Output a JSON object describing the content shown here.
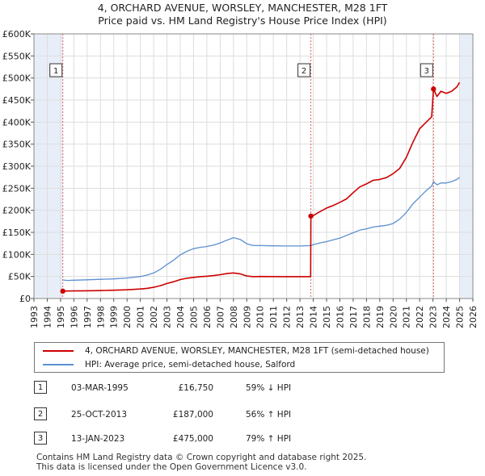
{
  "title": {
    "line1": "4, ORCHARD AVENUE, WORSLEY, MANCHESTER, M28 1FT",
    "line2": "Price paid vs. HM Land Registry's House Price Index (HPI)"
  },
  "colors": {
    "property": "#cc0000",
    "hpi": "#5b8fd0",
    "shade": "#e8eef8",
    "grid": "#dddddd",
    "vline": "#e06060"
  },
  "chart_data": {
    "type": "line",
    "title": "4, ORCHARD AVENUE, WORSLEY, MANCHESTER, M28 1FT — Price paid vs. HM Land Registry's House Price Index (HPI)",
    "xlabel": "",
    "ylabel": "",
    "xlim": [
      1993,
      2026
    ],
    "ylim": [
      0,
      600000
    ],
    "x_ticks": [
      1993,
      1994,
      1995,
      1996,
      1997,
      1998,
      1999,
      2000,
      2001,
      2002,
      2003,
      2004,
      2005,
      2006,
      2007,
      2008,
      2009,
      2010,
      2011,
      2012,
      2013,
      2014,
      2015,
      2016,
      2017,
      2018,
      2019,
      2020,
      2021,
      2022,
      2023,
      2024,
      2025,
      2026
    ],
    "y_ticks": [
      0,
      50000,
      100000,
      150000,
      200000,
      250000,
      300000,
      350000,
      400000,
      450000,
      500000,
      550000,
      600000
    ],
    "y_tick_labels": [
      "£0",
      "£50K",
      "£100K",
      "£150K",
      "£200K",
      "£250K",
      "£300K",
      "£350K",
      "£400K",
      "£450K",
      "£500K",
      "£550K",
      "£600K"
    ],
    "grid": true,
    "shaded_ranges": [
      [
        1993,
        1995.17
      ],
      [
        2025.0,
        2026
      ]
    ],
    "series": [
      {
        "name": "4, ORCHARD AVENUE, WORSLEY, MANCHESTER, M28 1FT (semi-detached house)",
        "x": [
          1995.17,
          1995.5,
          1996,
          1997,
          1998,
          1999,
          2000,
          2001,
          2001.5,
          2002,
          2002.5,
          2003,
          2003.5,
          2004,
          2004.5,
          2005,
          2005.5,
          2006,
          2006.5,
          2007,
          2007.5,
          2008,
          2008.5,
          2009,
          2009.5,
          2010,
          2011,
          2012,
          2013,
          2013.8,
          2013.82,
          2014,
          2014.5,
          2015,
          2015.5,
          2016,
          2016.5,
          2017,
          2017.5,
          2018,
          2018.5,
          2019,
          2019.5,
          2020,
          2020.5,
          2021,
          2021.5,
          2022,
          2022.5,
          2022.9,
          2023.04,
          2023.3,
          2023.6,
          2024,
          2024.4,
          2024.8,
          2025
        ],
        "values": [
          16750,
          17000,
          17200,
          17500,
          18000,
          18800,
          19800,
          21500,
          23000,
          25500,
          29000,
          34000,
          38000,
          43000,
          46000,
          48000,
          49500,
          50500,
          52000,
          54000,
          56500,
          58000,
          56000,
          51000,
          49500,
          50000,
          49800,
          49500,
          49500,
          49500,
          187000,
          188000,
          197000,
          205000,
          211000,
          218000,
          226000,
          240000,
          253000,
          260000,
          268000,
          270000,
          274000,
          283000,
          295000,
          320000,
          355000,
          385000,
          400000,
          412000,
          475000,
          458000,
          470000,
          465000,
          470000,
          480000,
          490000
        ]
      },
      {
        "name": "HPI: Average price, semi-detached house, Salford",
        "x": [
          1995.17,
          1995.5,
          1996,
          1997,
          1998,
          1999,
          2000,
          2001,
          2001.5,
          2002,
          2002.5,
          2003,
          2003.5,
          2004,
          2004.5,
          2005,
          2005.5,
          2006,
          2006.5,
          2007,
          2007.5,
          2008,
          2008.5,
          2009,
          2009.5,
          2010,
          2011,
          2012,
          2013,
          2013.82,
          2014,
          2014.5,
          2015,
          2015.5,
          2016,
          2016.5,
          2017,
          2017.5,
          2018,
          2018.5,
          2019,
          2019.5,
          2020,
          2020.5,
          2021,
          2021.5,
          2022,
          2022.5,
          2022.9,
          2023.04,
          2023.3,
          2023.6,
          2024,
          2024.4,
          2024.8,
          2025
        ],
        "values": [
          42000,
          41000,
          41500,
          42500,
          43500,
          44500,
          46500,
          50000,
          53000,
          58000,
          66000,
          77000,
          87000,
          99000,
          107000,
          113000,
          116000,
          118000,
          121000,
          126000,
          132000,
          138000,
          134000,
          124000,
          120000,
          120000,
          119500,
          119000,
          119000,
          120000,
          122000,
          126000,
          129000,
          133000,
          137000,
          143000,
          149000,
          155000,
          158000,
          162000,
          164000,
          166000,
          170000,
          180000,
          195000,
          215000,
          230000,
          245000,
          255000,
          265000,
          258000,
          262000,
          262000,
          265000,
          270000,
          275000
        ]
      }
    ],
    "annotations": [
      {
        "label": "1",
        "x": 1995.17
      },
      {
        "label": "2",
        "x": 2013.82
      },
      {
        "label": "3",
        "x": 2023.04
      }
    ]
  },
  "legend": {
    "property_label": "4, ORCHARD AVENUE, WORSLEY, MANCHESTER, M28 1FT (semi-detached house)",
    "hpi_label": "HPI: Average price, semi-detached house, Salford"
  },
  "sales": [
    {
      "marker": "1",
      "date": "03-MAR-1995",
      "price": "£16,750",
      "hpi": "59% ↓ HPI"
    },
    {
      "marker": "2",
      "date": "25-OCT-2013",
      "price": "£187,000",
      "hpi": "56% ↑ HPI"
    },
    {
      "marker": "3",
      "date": "13-JAN-2023",
      "price": "£475,000",
      "hpi": "79% ↑ HPI"
    }
  ],
  "footnote": {
    "line1": "Contains HM Land Registry data © Crown copyright and database right 2025.",
    "line2": "This data is licensed under the Open Government Licence v3.0."
  }
}
